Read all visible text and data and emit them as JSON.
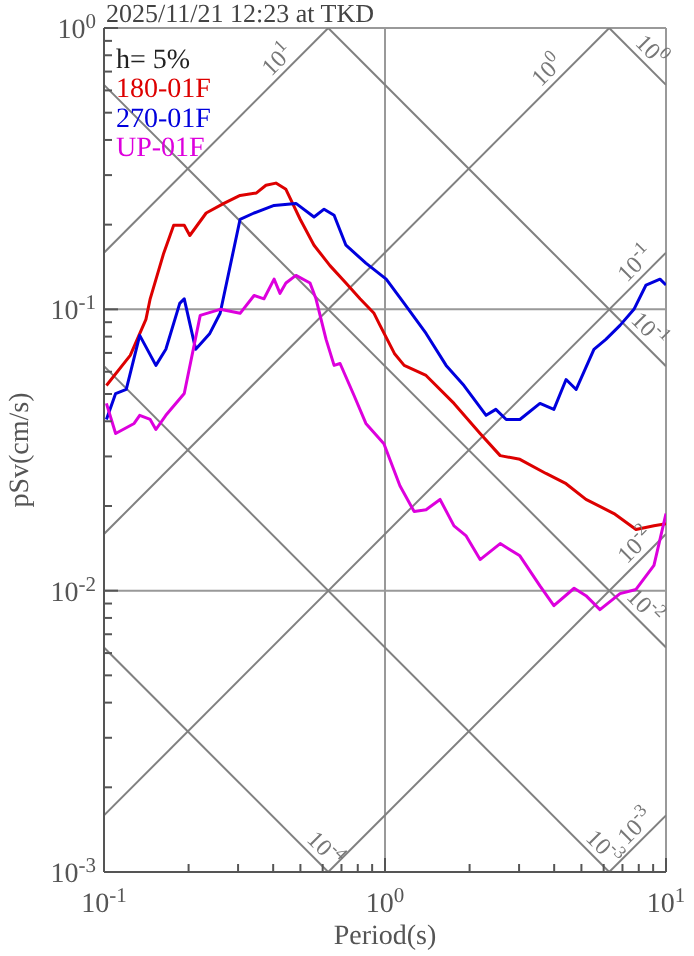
{
  "chart_data": {
    "type": "line",
    "title": "2025/11/21 12:23 at TKD",
    "xlabel": "Period(s)",
    "ylabel": "pSv(cm/s)",
    "log": "xy",
    "grid": true,
    "legend": "top left",
    "marker": "none",
    "line_style": "solid",
    "xlim": [
      0.1,
      10
    ],
    "ylim": [
      0.001,
      1
    ],
    "xticks": [
      {
        "value": 0.1,
        "label": "10$^{-1}$"
      },
      {
        "value": 0.2,
        "label": null
      },
      {
        "value": 0.3,
        "label": null
      },
      {
        "value": 0.4,
        "label": null
      },
      {
        "value": 0.5,
        "label": null
      },
      {
        "value": 0.6,
        "label": null
      },
      {
        "value": 0.7,
        "label": null
      },
      {
        "value": 0.8,
        "label": null
      },
      {
        "value": 0.9,
        "label": null
      },
      {
        "value": 1,
        "label": "10$^{0}$"
      },
      {
        "value": 2,
        "label": null
      },
      {
        "value": 3,
        "label": null
      },
      {
        "value": 4,
        "label": null
      },
      {
        "value": 5,
        "label": null
      },
      {
        "value": 6,
        "label": null
      },
      {
        "value": 7,
        "label": null
      },
      {
        "value": 8,
        "label": null
      },
      {
        "value": 9,
        "label": null
      },
      {
        "value": 10,
        "label": "10$^{1}$"
      }
    ],
    "yticks": [
      {
        "value": 0.001,
        "label": "10$^{-3}$"
      },
      {
        "value": 0.002,
        "label": null
      },
      {
        "value": 0.003,
        "label": null
      },
      {
        "value": 0.004,
        "label": null
      },
      {
        "value": 0.005,
        "label": null
      },
      {
        "value": 0.006,
        "label": null
      },
      {
        "value": 0.007,
        "label": null
      },
      {
        "value": 0.008,
        "label": null
      },
      {
        "value": 0.009,
        "label": null
      },
      {
        "value": 0.01,
        "label": "10$^{-2}$"
      },
      {
        "value": 0.02,
        "label": null
      },
      {
        "value": 0.03,
        "label": null
      },
      {
        "value": 0.04,
        "label": null
      },
      {
        "value": 0.05,
        "label": null
      },
      {
        "value": 0.06,
        "label": null
      },
      {
        "value": 0.07,
        "label": null
      },
      {
        "value": 0.08,
        "label": null
      },
      {
        "value": 0.09,
        "label": null
      },
      {
        "value": 0.1,
        "label": "10$^{-1}$"
      },
      {
        "value": 0.2,
        "label": null
      },
      {
        "value": 0.3,
        "label": null
      },
      {
        "value": 0.4,
        "label": null
      },
      {
        "value": 0.5,
        "label": null
      },
      {
        "value": 0.6,
        "label": null
      },
      {
        "value": 0.7,
        "label": null
      },
      {
        "value": 0.8,
        "label": null
      },
      {
        "value": 0.9,
        "label": null
      },
      {
        "value": 1,
        "label": "10$^{0}$"
      }
    ],
    "annotations": [
      "h= 5%",
      {
        "text": "10$^{1}$",
        "x": 0.46,
        "y": 0.73
      },
      {
        "text": "10$^{0}$",
        "x": 4.2,
        "y": 0.67
      },
      {
        "text": "10$^{-1}$",
        "x": 8.8,
        "y": 0.14
      },
      {
        "text": "10$^{-2}$",
        "x": 8.8,
        "y": 0.014
      },
      {
        "text": "10$^{-3}$",
        "x": 8.8,
        "y": 0.0014
      },
      {
        "text": "10$^{0}$",
        "x": 8.4,
        "y": 0.75
      },
      {
        "text": "10$^{-1}$",
        "x": 8.4,
        "y": 0.075
      },
      {
        "text": "10$^{-2}$",
        "x": 8.1,
        "y": 0.0078
      },
      {
        "text": "10$^{-3}$",
        "x": 5.8,
        "y": 0.00108
      },
      {
        "text": "10$^{-4}$",
        "x": 0.59,
        "y": 0.00107
      }
    ],
    "series": [
      {
        "color": "#808080",
        "x": [
          0.1,
          0.628
        ],
        "values": [
          0.159,
          1
        ]
      },
      {
        "color": "#808080",
        "x": [
          0.1,
          6.28
        ],
        "values": [
          0.0159,
          1
        ]
      },
      {
        "color": "#808080",
        "x": [
          0.1,
          10
        ],
        "values": [
          0.00159,
          0.159
        ]
      },
      {
        "color": "#808080",
        "x": [
          0.628,
          10
        ],
        "values": [
          0.001,
          0.0159
        ]
      },
      {
        "color": "#808080",
        "x": [
          6.28,
          10
        ],
        "values": [
          0.001,
          0.00159
        ]
      },
      {
        "color": "#808080",
        "x": [
          6.28,
          10
        ],
        "values": [
          1,
          0.628
        ]
      },
      {
        "color": "#808080",
        "x": [
          0.628,
          10
        ],
        "values": [
          1,
          0.0628
        ]
      },
      {
        "color": "#808080",
        "x": [
          0.1,
          10
        ],
        "values": [
          0.628,
          0.00628
        ]
      },
      {
        "color": "#808080",
        "x": [
          0.1,
          6.28
        ],
        "values": [
          0.0628,
          0.001
        ]
      },
      {
        "color": "#808080",
        "x": [
          0.1,
          0.628
        ],
        "values": [
          0.00628,
          0.001
        ]
      },
      {
        "name": "180-01F",
        "color": "#dd0000",
        "x": [
          0.102,
          0.124,
          0.141,
          0.146,
          0.163,
          0.177,
          0.193,
          0.202,
          0.231,
          0.267,
          0.305,
          0.348,
          0.377,
          0.409,
          0.444,
          0.499,
          0.559,
          0.637,
          0.726,
          0.815,
          0.914,
          0.96,
          1.08,
          1.17,
          1.4,
          1.76,
          2.18,
          2.57,
          3.02,
          3.74,
          4.41,
          5.19,
          6.53,
          7.82,
          9.06,
          10
        ],
        "values": [
          0.0536,
          0.0686,
          0.0921,
          0.109,
          0.158,
          0.199,
          0.199,
          0.183,
          0.22,
          0.238,
          0.254,
          0.259,
          0.276,
          0.281,
          0.267,
          0.209,
          0.169,
          0.143,
          0.124,
          0.109,
          0.0968,
          0.0877,
          0.0697,
          0.0632,
          0.0582,
          0.0463,
          0.0362,
          0.0302,
          0.0293,
          0.0261,
          0.024,
          0.0211,
          0.0188,
          0.0165,
          0.017,
          0.0173
        ]
      },
      {
        "name": "270-01F",
        "color": "#0000dd",
        "x": [
          0.102,
          0.11,
          0.12,
          0.134,
          0.153,
          0.166,
          0.186,
          0.193,
          0.212,
          0.238,
          0.259,
          0.305,
          0.342,
          0.403,
          0.482,
          0.559,
          0.607,
          0.659,
          0.726,
          0.855,
          1.01,
          1.17,
          1.4,
          1.65,
          1.91,
          2.29,
          2.48,
          2.7,
          3.02,
          3.56,
          3.99,
          4.41,
          4.79,
          5.54,
          6.11,
          6.86,
          7.69,
          8.49,
          9.52,
          10
        ],
        "values": [
          0.0406,
          0.0502,
          0.0519,
          0.0808,
          0.0632,
          0.0721,
          0.105,
          0.109,
          0.0721,
          0.0821,
          0.0968,
          0.209,
          0.22,
          0.234,
          0.238,
          0.213,
          0.227,
          0.216,
          0.169,
          0.146,
          0.128,
          0.105,
          0.0821,
          0.0632,
          0.0536,
          0.042,
          0.0441,
          0.0406,
          0.0406,
          0.0463,
          0.0441,
          0.0563,
          0.0519,
          0.0721,
          0.0782,
          0.0877,
          0.1,
          0.122,
          0.128,
          0.122
        ]
      },
      {
        "name": "UP-01F",
        "color": "#dd00dd",
        "x": [
          0.102,
          0.11,
          0.128,
          0.134,
          0.146,
          0.153,
          0.166,
          0.193,
          0.22,
          0.259,
          0.305,
          0.342,
          0.371,
          0.403,
          0.423,
          0.444,
          0.482,
          0.541,
          0.568,
          0.617,
          0.659,
          0.692,
          0.776,
          0.855,
          0.991,
          1.13,
          1.27,
          1.4,
          1.57,
          1.76,
          1.94,
          2.18,
          2.57,
          3.02,
          3.56,
          3.99,
          4.71,
          5.19,
          5.82,
          6.86,
          7.82,
          9.06,
          10
        ],
        "values": [
          0.0463,
          0.0362,
          0.0393,
          0.042,
          0.0406,
          0.0374,
          0.042,
          0.0502,
          0.0952,
          0.1,
          0.0968,
          0.112,
          0.109,
          0.128,
          0.114,
          0.124,
          0.132,
          0.124,
          0.109,
          0.0782,
          0.0632,
          0.0642,
          0.0494,
          0.0393,
          0.0333,
          0.0236,
          0.0191,
          0.0194,
          0.0211,
          0.017,
          0.0157,
          0.0129,
          0.0147,
          0.0133,
          0.0104,
          0.00884,
          0.0102,
          0.0096,
          0.00856,
          0.00976,
          0.0101,
          0.0123,
          0.0188
        ]
      }
    ]
  }
}
